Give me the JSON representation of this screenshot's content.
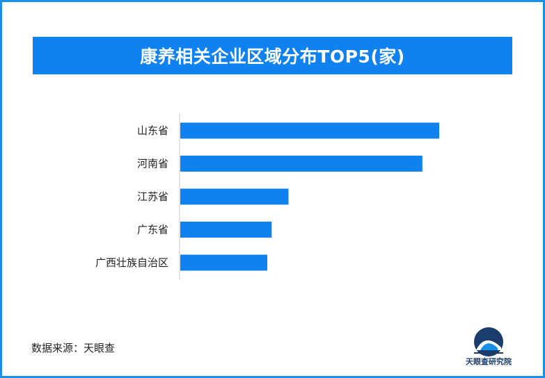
{
  "header": {
    "title": "康养相关企业区域分布TOP5(家)"
  },
  "footer": {
    "source": "数据来源：天眼查"
  },
  "logo": {
    "text": "天眼查研究院",
    "icon": "tianyancha-logo-icon"
  },
  "colors": {
    "accent": "#0f82ef",
    "bar": "#0f82ef",
    "axis": "#c8c8c8"
  },
  "chart_data": {
    "type": "bar",
    "orientation": "horizontal",
    "title": "康养相关企业区域分布TOP5(家)",
    "categories": [
      "山东省",
      "河南省",
      "江苏省",
      "广东省",
      "广西壮族自治区"
    ],
    "values": [
      100,
      93.5,
      41.8,
      35.3,
      33.6
    ],
    "xlim": [
      0,
      100
    ],
    "grid": false,
    "legend": "none",
    "value_labels_shown": false
  }
}
